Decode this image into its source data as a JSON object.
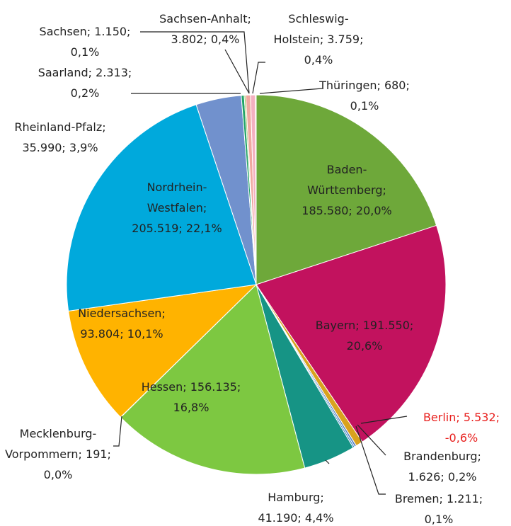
{
  "chart_data": {
    "type": "pie",
    "categories": [
      "Baden-Württemberg",
      "Bayern",
      "Berlin",
      "Brandenburg",
      "Bremen",
      "Hamburg",
      "Hessen",
      "Mecklenburg-Vorpommern",
      "Niedersachsen",
      "Nordrhein-Westfalen",
      "Rheinland-Pfalz",
      "Saarland",
      "Sachsen",
      "Sachsen-Anhalt",
      "Schleswig-Holstein",
      "Thüringen"
    ],
    "values": [
      185580,
      191550,
      -5532,
      1626,
      1211,
      41190,
      156135,
      191,
      93804,
      205519,
      35990,
      2313,
      1150,
      3802,
      3759,
      680
    ],
    "value_labels": [
      "; 185.580; 20,0%",
      "; 191.550; 20,6%",
      "; 5.532; -0,6%",
      "; 1.626; 0,2%",
      "; 1.211; 0,1%",
      "; 41.190; 4,4%",
      "; 156.135; 16,8%",
      "; 191; 0,0%",
      "; 93.804; 10,1%",
      "; 205.519; 22,1%",
      "; 35.990; 3,9%",
      "; 2.313; 0,2%",
      "; 1.150; 0,1%",
      "; 3.802; 0,4%",
      "; 3.759; 0,4%",
      "; 680; 0,1%"
    ],
    "colors": [
      "#6ea83a",
      "#c2125e",
      "#d9a21e",
      "#5f86c4",
      "#2a7fc0",
      "#169485",
      "#7dc841",
      "#3a9a70",
      "#ffb300",
      "#00a9dc",
      "#7191cd",
      "#22a468",
      "#93c050",
      "#f0a8a0",
      "#f4b0c0",
      "#f8cfa8"
    ],
    "label_colors": [
      "#222",
      "#222",
      "#e8201e",
      "#222",
      "#222",
      "#222",
      "#222",
      "#222",
      "#222",
      "#222",
      "#222",
      "#222",
      "#222",
      "#222",
      "#222",
      "#222"
    ]
  }
}
